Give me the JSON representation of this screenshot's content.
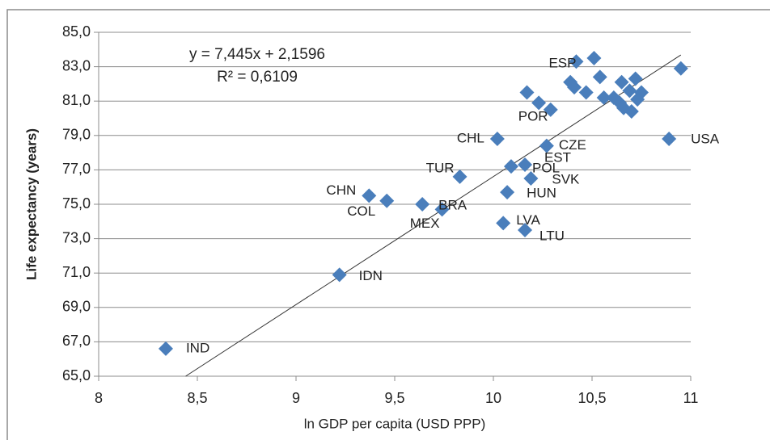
{
  "chart_data": {
    "type": "scatter",
    "x_label": "ln GDP per capita (USD PPP)",
    "y_label": "Life expectancy (years)",
    "color": "#4a7ebb",
    "x": [
      8.34,
      9.22,
      9.37,
      9.46,
      9.64,
      9.74,
      9.83,
      10.02,
      10.05,
      10.07,
      10.09,
      10.16,
      10.19,
      10.16,
      10.27,
      10.17,
      10.23,
      10.29,
      10.42,
      10.51,
      10.39,
      10.41,
      10.47,
      10.54,
      10.56,
      10.61,
      10.64,
      10.65,
      10.66,
      10.69,
      10.7,
      10.72,
      10.73,
      10.75,
      10.89,
      10.95
    ],
    "values": [
      66.6,
      70.9,
      75.5,
      75.2,
      75.0,
      74.7,
      76.6,
      78.8,
      73.9,
      75.7,
      77.2,
      77.3,
      76.5,
      73.5,
      78.4,
      81.5,
      80.9,
      80.5,
      83.3,
      83.5,
      82.1,
      81.8,
      81.5,
      82.4,
      81.2,
      81.2,
      80.9,
      82.1,
      80.6,
      81.6,
      80.4,
      82.3,
      81.1,
      81.5,
      78.8,
      82.9
    ],
    "labels": [
      "IND",
      "IDN",
      "CHN",
      "COL",
      "BRA",
      "MEX",
      "TUR",
      "CHL",
      "LVA",
      "HUN",
      "EST",
      "POL",
      "SVK",
      "LTU",
      "CZE",
      null,
      null,
      "POR",
      "ESP",
      null,
      null,
      null,
      null,
      null,
      null,
      null,
      null,
      null,
      null,
      null,
      null,
      null,
      null,
      null,
      "USA",
      null
    ],
    "trendline": {
      "slope": 7.445,
      "intercept": 2.1596,
      "equation": "y = 7,445x + 2,1596",
      "r2": "R² = 0,6109"
    },
    "xlim": [
      8,
      11
    ],
    "xticks": [
      8,
      {
        "value": 8.5,
        "label": "8,5"
      },
      9,
      {
        "value": 9.5,
        "label": "9,5"
      },
      10,
      {
        "value": 10.5,
        "label": "10,5"
      },
      11
    ],
    "ylim": [
      65,
      85
    ],
    "yticks": [
      {
        "value": 65,
        "label": "65,0"
      },
      {
        "value": 67,
        "label": "67,0"
      },
      {
        "value": 69,
        "label": "69,0"
      },
      {
        "value": 71,
        "label": "71,0"
      },
      {
        "value": 73,
        "label": "73,0"
      },
      {
        "value": 75,
        "label": "75,0"
      },
      {
        "value": 77,
        "label": "77,0"
      },
      {
        "value": 79,
        "label": "79,0"
      },
      {
        "value": 81,
        "label": "81,0"
      },
      {
        "value": 83,
        "label": "83,0"
      },
      {
        "value": 85,
        "label": "85,0"
      }
    ],
    "grid": true
  }
}
